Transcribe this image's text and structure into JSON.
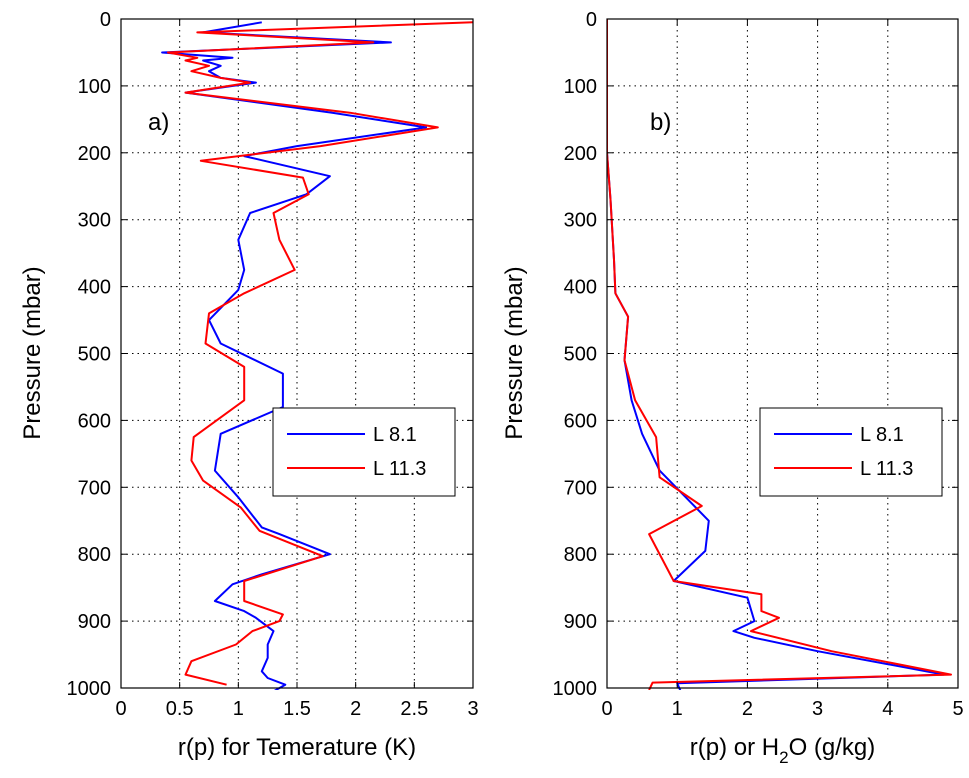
{
  "chart_data": [
    {
      "type": "line",
      "panel_label": "a)",
      "xlabel": "r(p) for Temerature (K)",
      "ylabel": "Pressure (mbar)",
      "xlim": [
        0,
        3
      ],
      "ylim": [
        0,
        1000
      ],
      "y_reversed": true,
      "xticks": [
        "0",
        "0.5",
        "1",
        "1.5",
        "2",
        "2.5",
        "3"
      ],
      "yticks": [
        "0",
        "100",
        "200",
        "300",
        "400",
        "500",
        "600",
        "700",
        "800",
        "900",
        "1000"
      ],
      "grid": "dotted",
      "legend_position": "right-middle",
      "series": [
        {
          "name": "L 8.1",
          "color": "#0000ff",
          "points": [
            [
              1.2,
              5
            ],
            [
              0.7,
              20
            ],
            [
              2.3,
              35
            ],
            [
              0.35,
              50
            ],
            [
              0.95,
              58
            ],
            [
              0.7,
              62
            ],
            [
              0.85,
              70
            ],
            [
              0.75,
              78
            ],
            [
              0.85,
              88
            ],
            [
              1.15,
              95
            ],
            [
              0.55,
              110
            ],
            [
              1.8,
              140
            ],
            [
              2.6,
              162
            ],
            [
              1.5,
              190
            ],
            [
              1.05,
              205
            ],
            [
              1.78,
              235
            ],
            [
              1.58,
              262
            ],
            [
              1.1,
              290
            ],
            [
              1.0,
              330
            ],
            [
              1.05,
              375
            ],
            [
              1.0,
              405
            ],
            [
              0.75,
              450
            ],
            [
              0.85,
              485
            ],
            [
              1.38,
              530
            ],
            [
              1.38,
              580
            ],
            [
              0.85,
              620
            ],
            [
              0.8,
              675
            ],
            [
              1.0,
              715
            ],
            [
              1.2,
              760
            ],
            [
              1.35,
              770
            ],
            [
              1.78,
              800
            ],
            [
              1.2,
              830
            ],
            [
              0.95,
              845
            ],
            [
              0.8,
              870
            ],
            [
              1.05,
              885
            ],
            [
              1.15,
              895
            ],
            [
              1.3,
              915
            ],
            [
              1.25,
              935
            ],
            [
              1.25,
              955
            ],
            [
              1.2,
              975
            ],
            [
              1.25,
              985
            ],
            [
              1.4,
              995
            ],
            [
              1.25,
              1010
            ]
          ]
        },
        {
          "name": "L 11.3",
          "color": "#ff0000",
          "points": [
            [
              3.0,
              5
            ],
            [
              0.65,
              20
            ],
            [
              2.15,
              35
            ],
            [
              0.4,
              50
            ],
            [
              0.65,
              58
            ],
            [
              0.55,
              62
            ],
            [
              0.75,
              70
            ],
            [
              0.6,
              78
            ],
            [
              0.85,
              88
            ],
            [
              1.1,
              95
            ],
            [
              0.55,
              110
            ],
            [
              1.95,
              140
            ],
            [
              2.7,
              162
            ],
            [
              1.7,
              190
            ],
            [
              0.68,
              212
            ],
            [
              1.55,
              237
            ],
            [
              1.6,
              262
            ],
            [
              1.3,
              290
            ],
            [
              1.35,
              330
            ],
            [
              1.48,
              375
            ],
            [
              1.05,
              410
            ],
            [
              0.75,
              440
            ],
            [
              0.72,
              485
            ],
            [
              1.05,
              520
            ],
            [
              1.05,
              570
            ],
            [
              0.62,
              625
            ],
            [
              0.6,
              660
            ],
            [
              0.7,
              690
            ],
            [
              1.02,
              730
            ],
            [
              1.18,
              765
            ],
            [
              1.72,
              803
            ],
            [
              1.05,
              840
            ],
            [
              1.05,
              870
            ],
            [
              1.38,
              890
            ],
            [
              1.35,
              900
            ],
            [
              1.12,
              915
            ],
            [
              0.98,
              935
            ],
            [
              0.6,
              960
            ],
            [
              0.55,
              980
            ],
            [
              0.9,
              995
            ]
          ]
        }
      ]
    },
    {
      "type": "line",
      "panel_label": "b)",
      "xlabel": "r(p) or H",
      "xlabel_sub": "2",
      "xlabel_tail": "O (g/kg)",
      "ylabel": "Pressure (mbar)",
      "xlim": [
        0,
        5
      ],
      "ylim": [
        0,
        1000
      ],
      "y_reversed": true,
      "xticks": [
        "0",
        "1",
        "2",
        "3",
        "4",
        "5"
      ],
      "yticks": [
        "0",
        "100",
        "200",
        "300",
        "400",
        "500",
        "600",
        "700",
        "800",
        "900",
        "1000"
      ],
      "grid": "dotted",
      "legend_position": "right-middle",
      "series": [
        {
          "name": "L 8.1",
          "color": "#0000ff",
          "points": [
            [
              0,
              0
            ],
            [
              0,
              200
            ],
            [
              0.05,
              270
            ],
            [
              0.1,
              360
            ],
            [
              0.12,
              410
            ],
            [
              0.3,
              445
            ],
            [
              0.25,
              510
            ],
            [
              0.35,
              570
            ],
            [
              0.5,
              620
            ],
            [
              0.75,
              675
            ],
            [
              1.45,
              750
            ],
            [
              1.4,
              795
            ],
            [
              0.95,
              840
            ],
            [
              2.0,
              865
            ],
            [
              2.1,
              900
            ],
            [
              1.8,
              915
            ],
            [
              2.1,
              925
            ],
            [
              3.0,
              945
            ],
            [
              4.8,
              980
            ],
            [
              1.0,
              993
            ],
            [
              1.05,
              1005
            ]
          ]
        },
        {
          "name": "L 11.3",
          "color": "#ff0000",
          "points": [
            [
              0,
              0
            ],
            [
              0,
              200
            ],
            [
              0.05,
              270
            ],
            [
              0.1,
              360
            ],
            [
              0.12,
              410
            ],
            [
              0.3,
              445
            ],
            [
              0.25,
              510
            ],
            [
              0.4,
              570
            ],
            [
              0.7,
              625
            ],
            [
              0.75,
              685
            ],
            [
              1.35,
              728
            ],
            [
              0.6,
              770
            ],
            [
              0.95,
              840
            ],
            [
              2.2,
              860
            ],
            [
              2.2,
              885
            ],
            [
              2.45,
              895
            ],
            [
              2.05,
              915
            ],
            [
              3.2,
              945
            ],
            [
              4.9,
              980
            ],
            [
              0.65,
              992
            ],
            [
              0.6,
              1003
            ]
          ]
        }
      ]
    }
  ]
}
